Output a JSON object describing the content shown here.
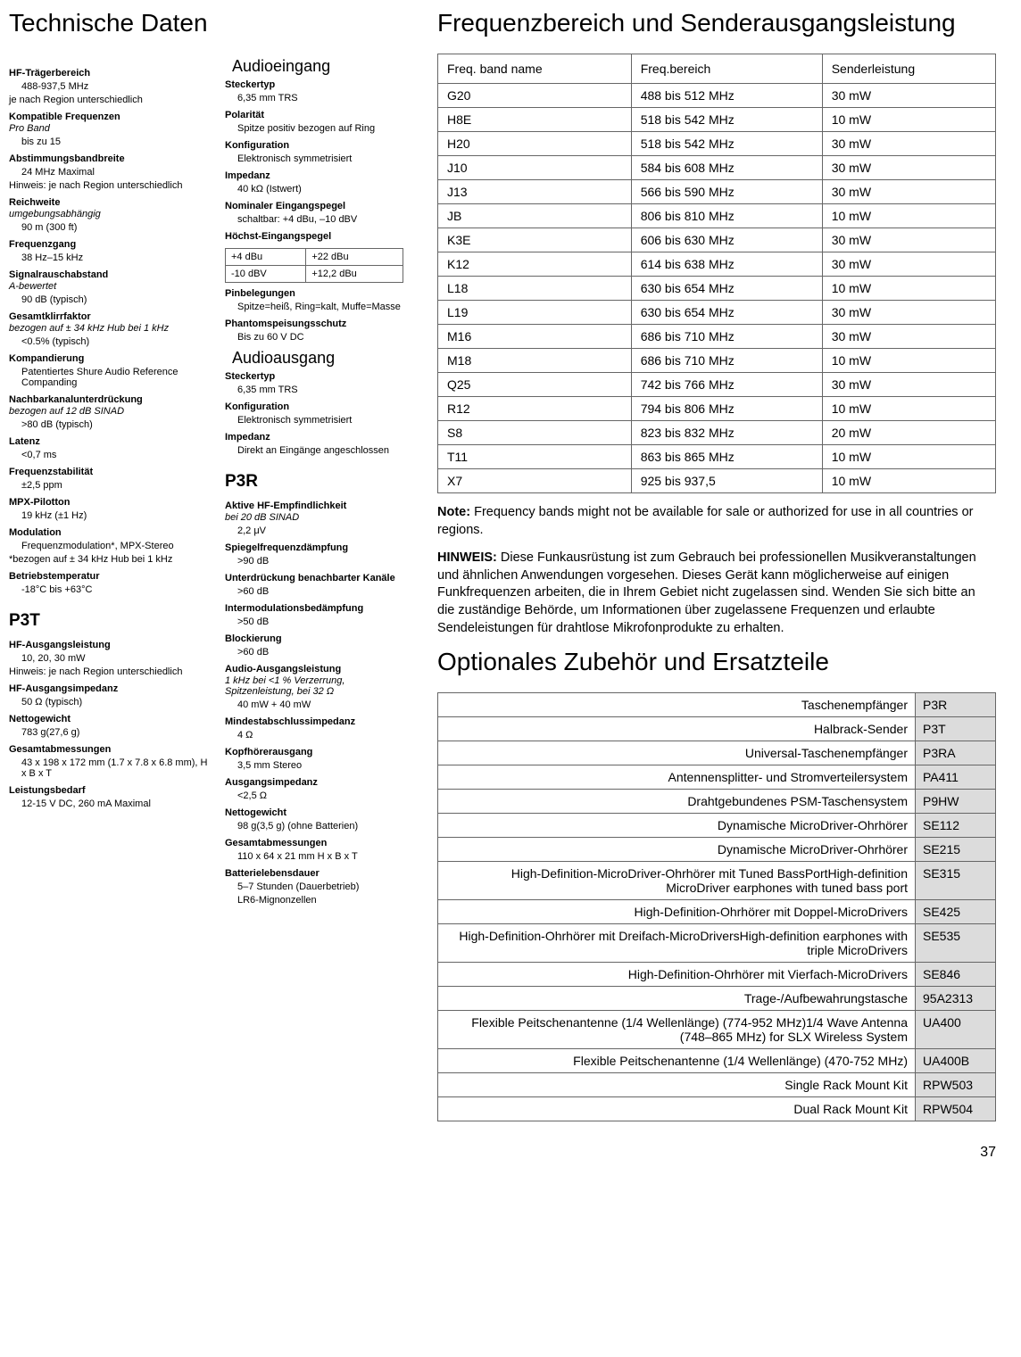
{
  "left_heading": "Technische Daten",
  "right_heading1": "Frequenzbereich und Senderausgangsleistung",
  "right_heading2": "Optionales Zubehör und Ersatzteile",
  "sub_audioeingang": "Audioeingang",
  "sub_audioausgang": "Audioausgang",
  "p3t_heading": "P3T",
  "p3r_heading": "P3R",
  "specs_col1a": [
    {
      "label": "HF-Trägerbereich",
      "val": "488-937,5 MHz",
      "subnote": "je nach Region unterschiedlich"
    },
    {
      "label": "Kompatible Frequenzen",
      "note": "Pro Band",
      "val": "bis zu 15"
    },
    {
      "label": "Abstimmungsbandbreite",
      "val": "24 MHz Maximal",
      "subnote": "Hinweis: je nach Region unterschiedlich"
    },
    {
      "label": "Reichweite",
      "note": "umgebungsabhängig",
      "val": "90 m (300 ft)"
    },
    {
      "label": "Frequenzgang",
      "val": "38 Hz–15 kHz"
    },
    {
      "label": "Signalrauschabstand",
      "note": "A-bewertet",
      "val": "90 dB (typisch)"
    },
    {
      "label": "Gesamtklirrfaktor",
      "note": "bezogen auf ± 34 kHz Hub bei 1 kHz",
      "val": "<0.5% (typisch)"
    },
    {
      "label": "Kompandierung",
      "val": "Patentiertes Shure Audio Reference Companding"
    },
    {
      "label": "Nachbarkanalunterdrückung",
      "note": "bezogen auf 12 dB SINAD",
      "val": ">80 dB (typisch)"
    },
    {
      "label": "Latenz",
      "val": "<0,7 ms"
    },
    {
      "label": "Frequenzstabilität",
      "val": "±2,5 ppm"
    },
    {
      "label": "MPX-Pilotton",
      "val": "19 kHz (±1 Hz)"
    },
    {
      "label": "Modulation",
      "val": "Frequenzmodulation*, MPX-Stereo",
      "subnote": "*bezogen auf ± 34 kHz Hub bei 1 kHz"
    },
    {
      "label": "Betriebstemperatur",
      "val": "-18°C bis +63°C"
    }
  ],
  "specs_p3t": [
    {
      "label": "HF-Ausgangsleistung",
      "val": "10, 20, 30 mW",
      "subnote": "Hinweis: je nach Region unterschiedlich"
    },
    {
      "label": "HF-Ausgangsimpedanz",
      "val": "50 Ω (typisch)"
    },
    {
      "label": "Nettogewicht",
      "val": "783 g(27,6 g)"
    },
    {
      "label": "Gesamtabmessungen",
      "val": "43 x 198 x 172 mm (1.7 x 7.8 x 6.8 mm), H x B x T"
    },
    {
      "label": "Leistungsbedarf",
      "val": "12-15 V DC, 260 mA Maximal"
    }
  ],
  "specs_audioein": [
    {
      "label": "Steckertyp",
      "val": "6,35 mm TRS"
    },
    {
      "label": "Polarität",
      "val": "Spitze positiv bezogen auf Ring"
    },
    {
      "label": "Konfiguration",
      "val": "Elektronisch symmetrisiert"
    },
    {
      "label": "Impedanz",
      "val": "40 kΩ (Istwert)"
    },
    {
      "label": "Nominaler Eingangspegel",
      "val": "schaltbar: +4 dBu, –10 dBV"
    }
  ],
  "hoechst_label": "Höchst-Eingangspegel",
  "hoechst_rows": [
    [
      "+4 dBu",
      "+22 dBu"
    ],
    [
      "-10 dBV",
      "+12,2  dBu"
    ]
  ],
  "specs_audioein2": [
    {
      "label": "Pinbelegungen",
      "val": "Spitze=heiß, Ring=kalt, Muffe=Masse"
    },
    {
      "label": "Phantomspeisungsschutz",
      "val": "Bis zu 60 V DC"
    }
  ],
  "specs_audioaus": [
    {
      "label": "Steckertyp",
      "val": "6,35 mm TRS"
    },
    {
      "label": "Konfiguration",
      "val": "Elektronisch symmetrisiert"
    },
    {
      "label": "Impedanz",
      "val": "Direkt an Eingänge angeschlossen"
    }
  ],
  "specs_p3r": [
    {
      "label": "Aktive HF-Empfindlichkeit",
      "note": "bei 20 dB SINAD",
      "val": "2,2  μV"
    },
    {
      "label": "Spiegelfrequenzdämpfung",
      "val": ">90 dB"
    },
    {
      "label": "Unterdrückung benachbarter Kanäle",
      "val": ">60 dB"
    },
    {
      "label": "Intermodulationsbedämpfung",
      "val": ">50 dB"
    },
    {
      "label": "Blockierung",
      "val": ">60 dB"
    },
    {
      "label": "Audio-Ausgangsleistung",
      "note": "1 kHz bei <1 % Verzerrung, Spitzenleistung, bei 32 Ω",
      "val": "40 mW  + 40 mW"
    },
    {
      "label": "Mindestabschlussimpedanz",
      "val": "4 Ω"
    },
    {
      "label": "Kopfhörerausgang",
      "val": "3,5 mm Stereo"
    },
    {
      "label": "Ausgangsimpedanz",
      "val": "<2,5 Ω"
    },
    {
      "label": "Nettogewicht",
      "val": "98 g(3,5 g) (ohne Batterien)"
    },
    {
      "label": "Gesamtabmessungen",
      "val": "110 x 64 x 21 mm H x B x T"
    },
    {
      "label": "Batterielebensdauer",
      "val": "5–7 Stunden (Dauerbetrieb)",
      "val2": "LR6-Mignonzellen"
    }
  ],
  "freq_table": {
    "headers": [
      "Freq. band name",
      "Freq.bereich",
      "Senderleistung"
    ],
    "rows": [
      [
        "G20",
        "488 bis 512 MHz",
        "30 mW"
      ],
      [
        "H8E",
        "518 bis 542 MHz",
        "10 mW"
      ],
      [
        "H20",
        "518 bis 542 MHz",
        "30 mW"
      ],
      [
        "J10",
        "584 bis 608 MHz",
        "30 mW"
      ],
      [
        "J13",
        "566 bis 590 MHz",
        "30 mW"
      ],
      [
        "JB",
        "806 bis 810 MHz",
        "10 mW"
      ],
      [
        "K3E",
        "606 bis 630 MHz",
        "30 mW"
      ],
      [
        "K12",
        "614 bis 638 MHz",
        "30 mW"
      ],
      [
        "L18",
        "630 bis 654 MHz",
        "10 mW"
      ],
      [
        "L19",
        "630 bis 654 MHz",
        "30 mW"
      ],
      [
        "M16",
        "686 bis 710 MHz",
        "30 mW"
      ],
      [
        "M18",
        "686 bis 710 MHz",
        "10 mW"
      ],
      [
        "Q25",
        "742 bis 766 MHz",
        "30 mW"
      ],
      [
        "R12",
        "794 bis 806 MHz",
        "10 mW"
      ],
      [
        "S8",
        "823 bis 832 MHz",
        "20 mW"
      ],
      [
        "T11",
        "863 bis 865 MHz",
        "10 mW"
      ],
      [
        "X7",
        "925 bis 937,5",
        "10 mW"
      ]
    ]
  },
  "note1_label": "Note:",
  "note1_text": " Frequency bands might not be available for sale or authorized for use in all countries or regions.",
  "note2_label": "HINWEIS:",
  "note2_text": " Diese Funkausrüstung ist zum Gebrauch bei professionellen Musikveranstaltungen und ähnlichen Anwendungen vorgesehen. Dieses Gerät kann möglicherweise auf einigen Funkfrequenzen arbeiten, die in Ihrem Gebiet nicht zugelassen sind. Wenden Sie sich bitte an die zuständige Behörde, um Informationen über zugelassene Frequenzen und erlaubte Sendeleistungen für drahtlose Mikrofonprodukte zu erhalten.",
  "acc_table": {
    "rows": [
      [
        "Taschenempfänger",
        "P3R"
      ],
      [
        "Halbrack-Sender",
        "P3T"
      ],
      [
        "Universal-Taschenempfänger",
        "P3RA"
      ],
      [
        "Antennensplitter- und Stromverteilersystem",
        "PA411"
      ],
      [
        "Drahtgebundenes PSM-Taschensystem",
        "P9HW"
      ],
      [
        "Dynamische MicroDriver-Ohrhörer",
        "SE112"
      ],
      [
        "Dynamische MicroDriver-Ohrhörer",
        "SE215"
      ],
      [
        "High-Definition-MicroDriver-Ohrhörer mit Tuned BassPortHigh-definition MicroDriver earphones with tuned bass port",
        "SE315"
      ],
      [
        "High-Definition-Ohrhörer mit Doppel-MicroDrivers",
        "SE425"
      ],
      [
        "High-Definition-Ohrhörer mit Dreifach-MicroDriversHigh-definition earphones with triple MicroDrivers",
        "SE535"
      ],
      [
        "High-Definition-Ohrhörer mit Vierfach-MicroDrivers",
        "SE846"
      ],
      [
        "Trage-/Aufbewahrungstasche",
        "95A2313"
      ],
      [
        "Flexible Peitschenantenne (1/4 Wellenlänge) (774-952 MHz)1/4 Wave Antenna (748–865 MHz) for SLX Wireless System",
        "UA400"
      ],
      [
        "Flexible Peitschenantenne (1/4 Wellenlänge) (470-752 MHz)",
        "UA400B"
      ],
      [
        "Single Rack Mount Kit",
        "RPW503"
      ],
      [
        "Dual Rack Mount Kit",
        "RPW504"
      ]
    ]
  },
  "page_num": "37"
}
